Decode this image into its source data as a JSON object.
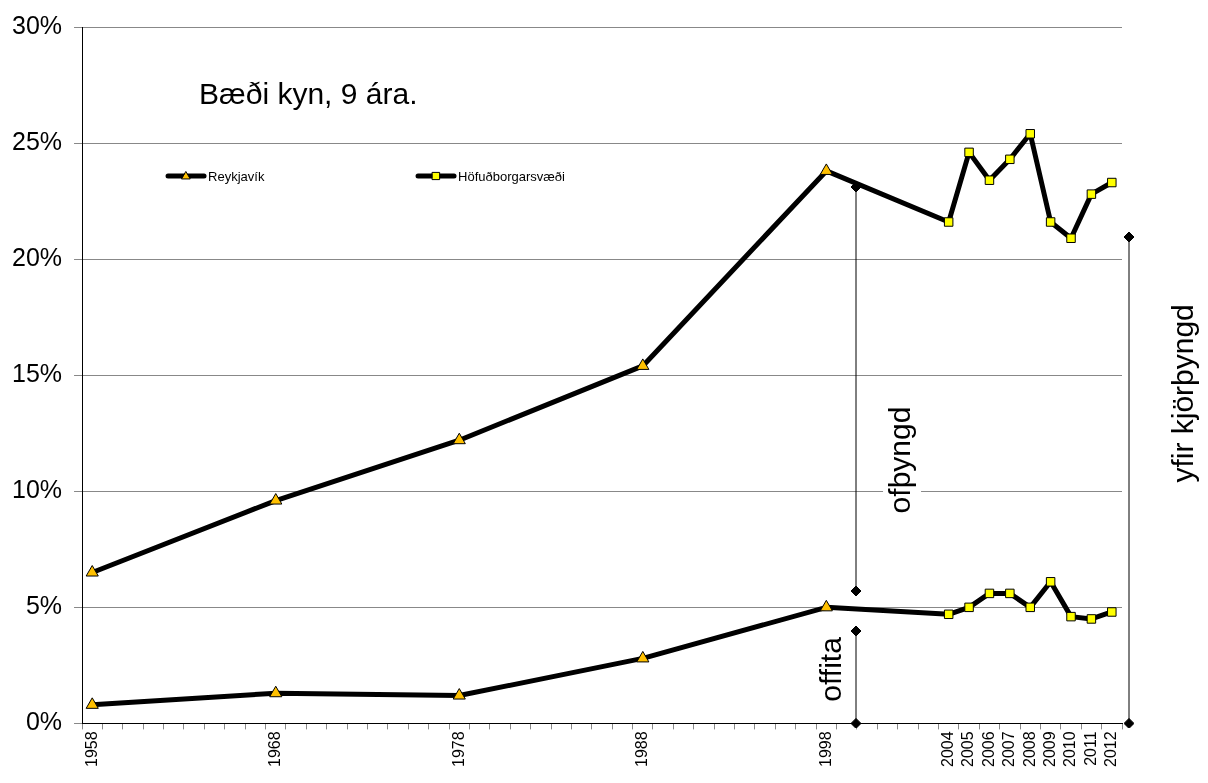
{
  "chart_data": {
    "type": "line",
    "title": "Bæði kyn, 9 ára.",
    "categories": [
      "1958",
      null,
      null,
      null,
      null,
      null,
      null,
      null,
      null,
      "1968",
      null,
      null,
      null,
      null,
      null,
      null,
      null,
      null,
      "1978",
      null,
      null,
      null,
      null,
      null,
      null,
      null,
      null,
      "1988",
      null,
      null,
      null,
      null,
      null,
      null,
      null,
      null,
      "1998",
      null,
      null,
      null,
      null,
      null,
      "2004",
      "2005",
      "2006",
      "2007",
      "2008",
      "2009",
      "2010",
      "2011",
      "2012"
    ],
    "series": [
      {
        "name": "Reykjavík",
        "color": "#000000",
        "marker": "triangle",
        "values": [
          6.5,
          null,
          null,
          null,
          null,
          null,
          null,
          null,
          null,
          9.6,
          null,
          null,
          null,
          null,
          null,
          null,
          null,
          null,
          12.2,
          null,
          null,
          null,
          null,
          null,
          null,
          null,
          null,
          15.4,
          null,
          null,
          null,
          null,
          null,
          null,
          null,
          null,
          23.8,
          null,
          null,
          null,
          null,
          null,
          null,
          null,
          null,
          null,
          null,
          null,
          null,
          null,
          null
        ]
      },
      {
        "color": "#000000",
        "marker": "triangle",
        "values": [
          0.8,
          null,
          null,
          null,
          null,
          null,
          null,
          null,
          null,
          1.3,
          null,
          null,
          null,
          null,
          null,
          null,
          null,
          null,
          1.2,
          null,
          null,
          null,
          null,
          null,
          null,
          null,
          null,
          2.8,
          null,
          null,
          null,
          null,
          null,
          null,
          null,
          null,
          5.0,
          null,
          null,
          null,
          null,
          null,
          null,
          null,
          null,
          null,
          null,
          null,
          null,
          null,
          null
        ]
      },
      {
        "name": "Höfuðborgarsvæði",
        "color": "#000000",
        "marker": "square",
        "values": [
          null,
          null,
          null,
          null,
          null,
          null,
          null,
          null,
          null,
          null,
          null,
          null,
          null,
          null,
          null,
          null,
          null,
          null,
          null,
          null,
          null,
          null,
          null,
          null,
          null,
          null,
          null,
          null,
          null,
          null,
          null,
          null,
          null,
          null,
          null,
          null,
          23.8,
          null,
          null,
          null,
          null,
          null,
          21.6,
          24.6,
          23.4,
          24.3,
          25.4,
          21.6,
          20.9,
          22.8,
          23.3
        ]
      },
      {
        "color": "#000000",
        "marker": "square",
        "values": [
          null,
          null,
          null,
          null,
          null,
          null,
          null,
          null,
          null,
          null,
          null,
          null,
          null,
          null,
          null,
          null,
          null,
          null,
          null,
          null,
          null,
          null,
          null,
          null,
          null,
          null,
          null,
          null,
          null,
          null,
          null,
          null,
          null,
          null,
          null,
          null,
          5.0,
          null,
          null,
          null,
          null,
          null,
          4.7,
          5.0,
          5.6,
          5.6,
          5.0,
          6.1,
          4.6,
          4.5,
          4.8
        ]
      }
    ],
    "ylim": [
      0,
      30
    ],
    "yticks": [
      {
        "value": 0,
        "label": "0%"
      },
      {
        "value": 5,
        "label": "5%"
      },
      {
        "value": 10,
        "label": "10%"
      },
      {
        "value": 15,
        "label": "15%"
      },
      {
        "value": 20,
        "label": "20%"
      },
      {
        "value": 25,
        "label": "25%"
      },
      {
        "value": 30,
        "label": "30%"
      }
    ],
    "grid": "y",
    "legend": "top left",
    "annotations": [
      "ofþyngd",
      "offita",
      "yfir kjörþyngd"
    ]
  }
}
